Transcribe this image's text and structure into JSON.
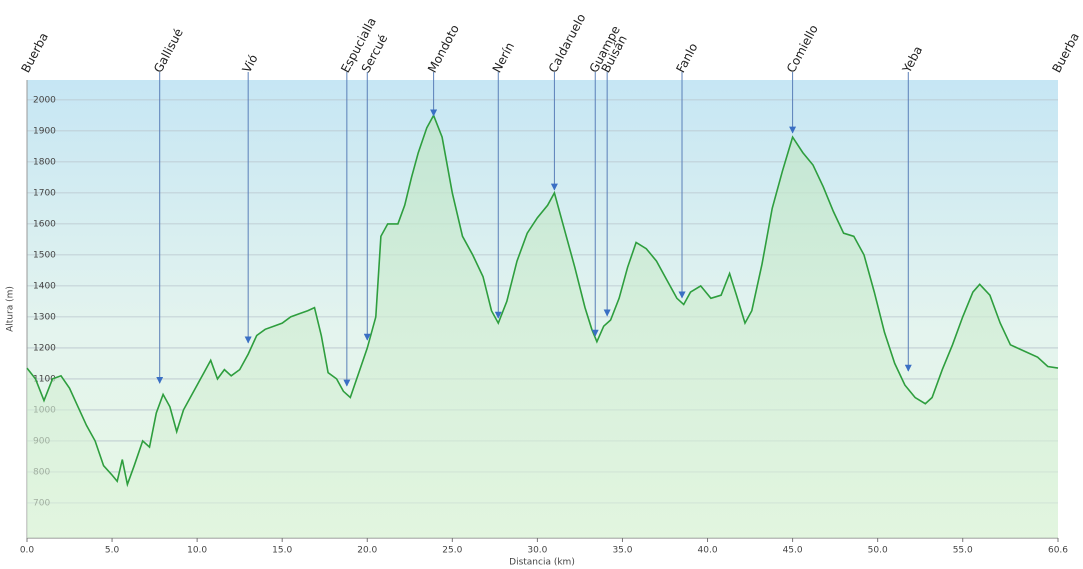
{
  "chart_data": {
    "type": "line",
    "ylabel": "Altura (m)",
    "xlabel": "Distancia  (km)",
    "color": "#2e9e3e",
    "xlim": [
      0,
      60.6
    ],
    "ylim": [
      587,
      2064
    ],
    "xticks": [
      {
        "value": 0,
        "label": "0.0"
      },
      {
        "value": 5,
        "label": "5.0"
      },
      {
        "value": 10,
        "label": "10.0"
      },
      {
        "value": 15,
        "label": "15.0"
      },
      {
        "value": 20,
        "label": "20.0"
      },
      {
        "value": 25,
        "label": "25.0"
      },
      {
        "value": 30,
        "label": "30.0"
      },
      {
        "value": 35,
        "label": "35.0"
      },
      {
        "value": 40,
        "label": "40.0"
      },
      {
        "value": 45,
        "label": "45.0"
      },
      {
        "value": 50,
        "label": "50.0"
      },
      {
        "value": 55,
        "label": "55.0"
      },
      60.6
    ],
    "yticks": [
      700,
      800,
      900,
      1000,
      1100,
      1200,
      1300,
      1400,
      1500,
      1600,
      1700,
      1800,
      1900,
      2000
    ],
    "grid": true,
    "x": [
      0.0,
      0.5,
      1.0,
      1.5,
      2.0,
      2.5,
      3.0,
      3.5,
      4.0,
      4.5,
      5.0,
      5.3,
      5.6,
      5.9,
      6.3,
      6.8,
      7.2,
      7.6,
      8.0,
      8.4,
      8.8,
      9.2,
      9.6,
      10.0,
      10.4,
      10.8,
      11.2,
      11.6,
      12.0,
      12.5,
      13.0,
      13.5,
      14.0,
      14.5,
      15.0,
      15.5,
      16.0,
      16.5,
      16.9,
      17.3,
      17.7,
      18.2,
      18.6,
      19.0,
      19.5,
      20.0,
      20.5,
      20.8,
      21.2,
      21.8,
      22.2,
      22.6,
      23.0,
      23.5,
      23.9,
      24.4,
      25.0,
      25.6,
      26.2,
      26.8,
      27.3,
      27.7,
      28.2,
      28.8,
      29.4,
      30.0,
      30.6,
      31.0,
      31.5,
      32.2,
      32.8,
      33.2,
      33.5,
      33.9,
      34.3,
      34.8,
      35.3,
      35.8,
      36.4,
      37.0,
      37.6,
      38.2,
      38.6,
      39.0,
      39.6,
      40.2,
      40.8,
      41.3,
      41.7,
      42.2,
      42.6,
      43.2,
      43.8,
      44.4,
      45.0,
      45.6,
      46.2,
      46.8,
      47.4,
      48.0,
      48.6,
      49.2,
      49.8,
      50.4,
      51.0,
      51.6,
      52.2,
      52.8,
      53.2,
      53.8,
      54.4,
      55.0,
      55.6,
      56.0,
      56.6,
      57.2,
      57.8,
      58.6,
      59.4,
      60.0,
      60.6
    ],
    "values": [
      1135,
      1100,
      1030,
      1100,
      1110,
      1070,
      1010,
      950,
      900,
      820,
      790,
      770,
      840,
      760,
      820,
      900,
      880,
      990,
      1050,
      1010,
      930,
      1000,
      1040,
      1080,
      1120,
      1160,
      1100,
      1130,
      1110,
      1130,
      1180,
      1240,
      1260,
      1270,
      1280,
      1300,
      1310,
      1320,
      1330,
      1240,
      1120,
      1100,
      1060,
      1040,
      1120,
      1200,
      1300,
      1560,
      1600,
      1600,
      1660,
      1750,
      1830,
      1910,
      1950,
      1880,
      1700,
      1560,
      1500,
      1430,
      1320,
      1280,
      1350,
      1480,
      1570,
      1620,
      1660,
      1700,
      1600,
      1460,
      1330,
      1260,
      1220,
      1270,
      1290,
      1360,
      1460,
      1540,
      1520,
      1480,
      1420,
      1360,
      1340,
      1380,
      1400,
      1360,
      1370,
      1440,
      1370,
      1280,
      1320,
      1470,
      1650,
      1770,
      1880,
      1830,
      1790,
      1720,
      1640,
      1570,
      1560,
      1500,
      1380,
      1250,
      1150,
      1080,
      1040,
      1020,
      1040,
      1130,
      1210,
      1300,
      1380,
      1405,
      1370,
      1280,
      1210,
      1190,
      1170,
      1140,
      1135
    ],
    "annotations": [
      {
        "label": "Buerba",
        "x": 0
      },
      {
        "label": "Gallisué",
        "x": 7.8,
        "y": 1080
      },
      {
        "label": "Vió",
        "x": 13.0,
        "y": 1210
      },
      {
        "label": "Espucialla",
        "x": 18.8,
        "y": 1071
      },
      {
        "label": "Sercué",
        "x": 20.0,
        "y": 1219
      },
      {
        "label": "Mondoto",
        "x": 23.9,
        "y": 1942
      },
      {
        "label": "Nerín",
        "x": 27.7,
        "y": 1290
      },
      {
        "label": "Caldaruelo",
        "x": 31.0,
        "y": 1703
      },
      {
        "label": "Guampe",
        "x": 33.4,
        "y": 1232
      },
      {
        "label": "Buisán",
        "x": 34.1,
        "y": 1297
      },
      {
        "label": "Fanlo",
        "x": 38.5,
        "y": 1355
      },
      {
        "label": "Comiello",
        "x": 45.0,
        "y": 1887
      },
      {
        "label": "Yeba",
        "x": 51.8,
        "y": 1119
      },
      {
        "label": "Buerba",
        "x": 60.6
      }
    ]
  }
}
